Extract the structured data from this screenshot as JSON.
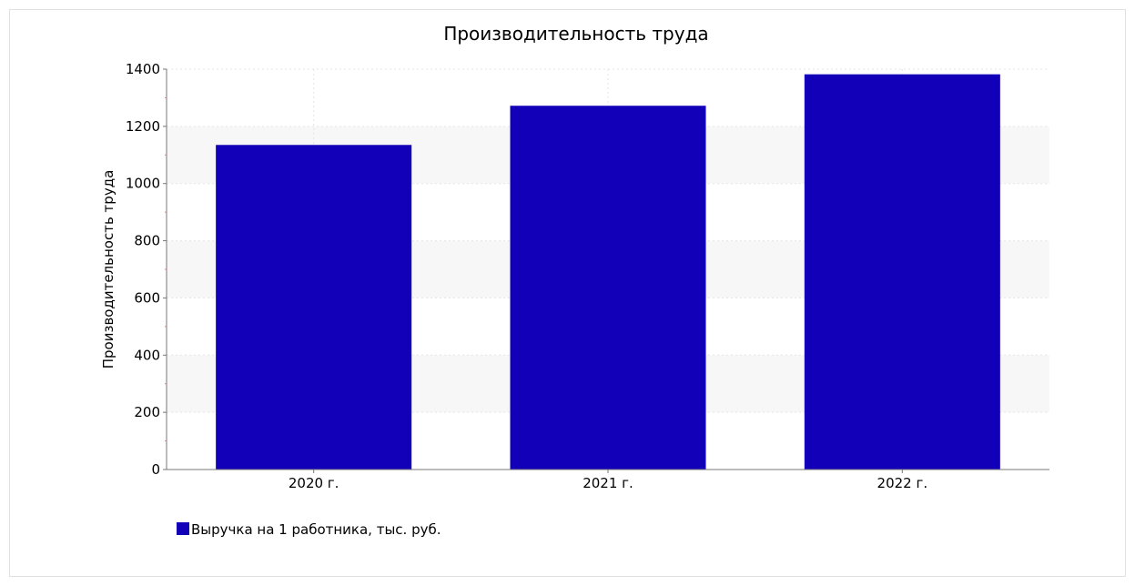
{
  "chart_data": {
    "type": "bar",
    "title": "Производительность труда",
    "xlabel": "",
    "ylabel": "Производительность труда",
    "categories": [
      "2020 г.",
      "2021 г.",
      "2022 г."
    ],
    "series": [
      {
        "name": "Выручка на 1 работника, тыс. руб.",
        "values": [
          1135,
          1272,
          1382
        ],
        "color": "#1100b8"
      }
    ],
    "ylim": [
      0,
      1400
    ],
    "yticks": [
      "0",
      "200",
      "400",
      "600",
      "800",
      "1000",
      "1200",
      "1400"
    ],
    "grid": true,
    "legend_position": "bottom-left"
  }
}
